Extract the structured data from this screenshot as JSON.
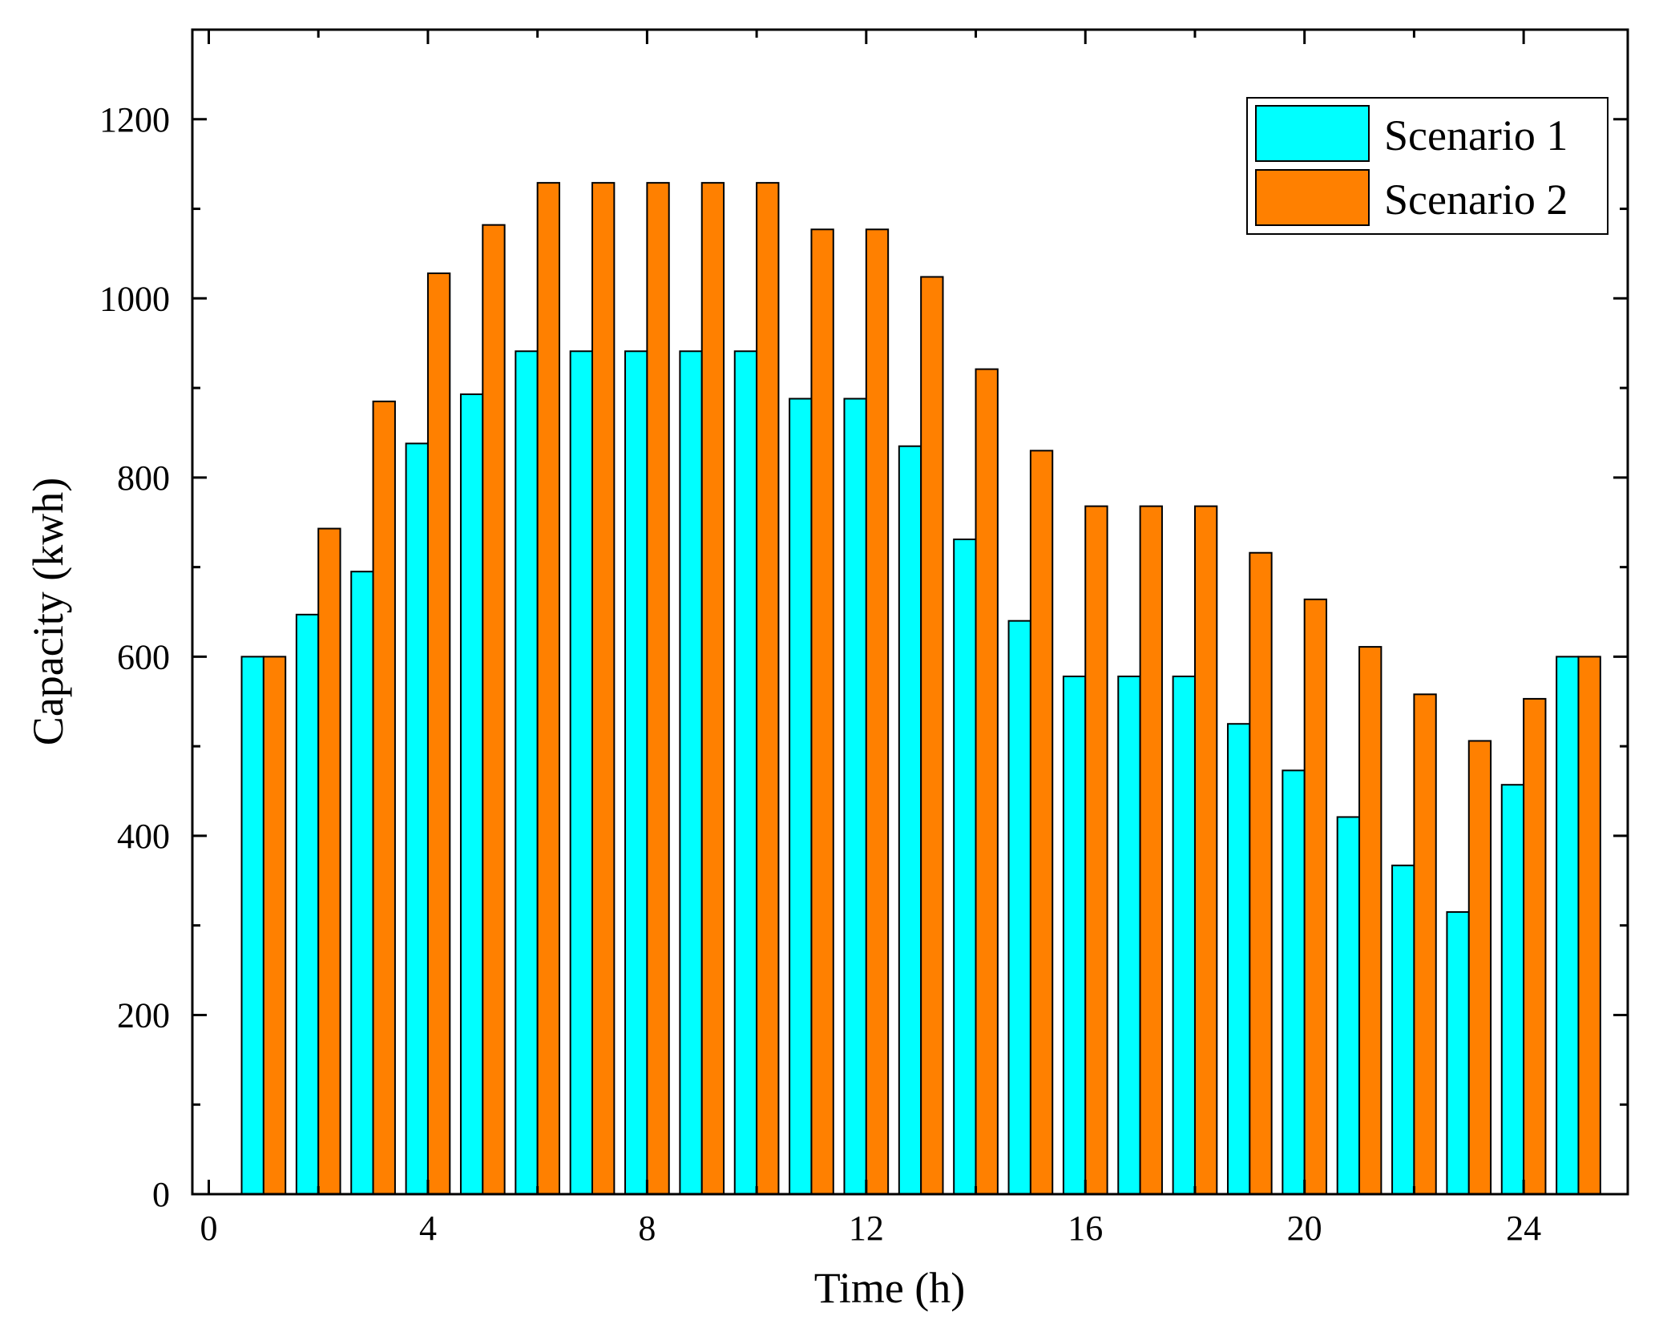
{
  "chart_data": {
    "type": "bar",
    "title": "",
    "xlabel": "Time (h)",
    "ylabel": "Capacity (kwh)",
    "xlim": [
      -0.3,
      25.9
    ],
    "ylim": [
      0,
      1300
    ],
    "xticks": [
      0,
      4,
      8,
      12,
      16,
      20,
      24
    ],
    "yticks": [
      0,
      200,
      400,
      600,
      800,
      1000,
      1200
    ],
    "x": [
      1,
      2,
      3,
      4,
      5,
      6,
      7,
      8,
      9,
      10,
      11,
      12,
      13,
      14,
      15,
      16,
      17,
      18,
      19,
      20,
      21,
      22,
      23,
      24,
      25
    ],
    "series": [
      {
        "name": "Scenario 1",
        "color": "#00FFFF",
        "values": [
          600,
          647,
          695,
          838,
          893,
          941,
          941,
          941,
          941,
          941,
          888,
          888,
          835,
          731,
          640,
          578,
          578,
          578,
          525,
          473,
          421,
          367,
          315,
          457,
          600
        ]
      },
      {
        "name": "Scenario 2",
        "color": "#FF8000",
        "values": [
          600,
          743,
          885,
          1028,
          1082,
          1129,
          1129,
          1129,
          1129,
          1129,
          1077,
          1077,
          1024,
          921,
          830,
          768,
          768,
          768,
          716,
          664,
          611,
          558,
          506,
          553,
          600
        ]
      }
    ],
    "legend_position": "top-right",
    "grid": false
  }
}
